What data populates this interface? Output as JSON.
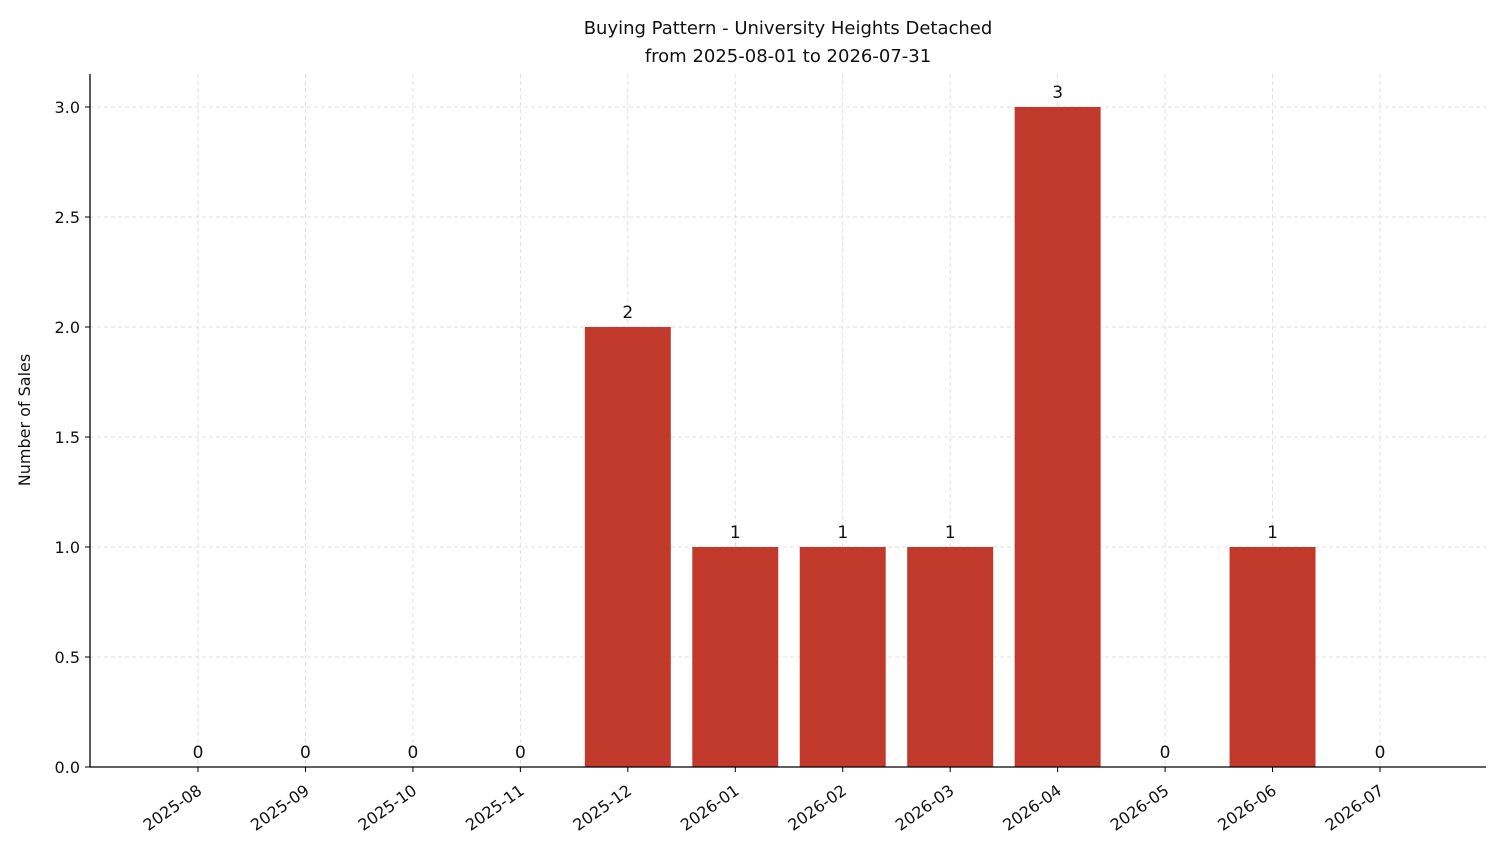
{
  "chart_data": {
    "type": "bar",
    "title": "Buying Pattern - University Heights Detached",
    "subtitle": "from 2025-08-01 to 2026-07-31",
    "xlabel": "",
    "ylabel": "Number of Sales",
    "categories": [
      "2025-08",
      "2025-09",
      "2025-10",
      "2025-11",
      "2025-12",
      "2026-01",
      "2026-02",
      "2026-03",
      "2026-04",
      "2026-05",
      "2026-06",
      "2026-07"
    ],
    "values": [
      0,
      0,
      0,
      0,
      2,
      1,
      1,
      1,
      3,
      0,
      1,
      0
    ],
    "data_labels": [
      "0",
      "0",
      "0",
      "0",
      "2",
      "1",
      "1",
      "1",
      "3",
      "0",
      "1",
      "0"
    ],
    "yticks": [
      0,
      0.5,
      1,
      1.5,
      2,
      2.5,
      3
    ],
    "ytick_labels": [
      "0.0",
      "0.5",
      "1.0",
      "1.5",
      "2.0",
      "2.5",
      "3.0"
    ],
    "ylim": [
      0,
      3.15
    ],
    "grid": true,
    "bar_color": "#c0392b",
    "grid_color": "#d9d9d9",
    "axis_color": "#000000"
  }
}
